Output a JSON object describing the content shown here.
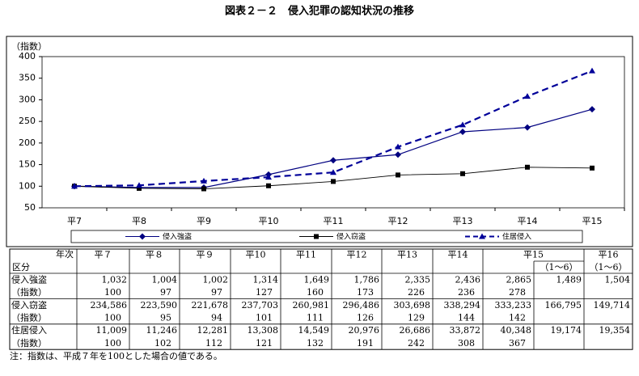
{
  "chart_data": {
    "type": "line",
    "title": "図表２－２　侵入犯罪の認知状況の推移",
    "y_label": "（指数）",
    "categories": [
      "平7",
      "平8",
      "平9",
      "平10",
      "平11",
      "平12",
      "平13",
      "平14",
      "平15"
    ],
    "series": [
      {
        "name": "侵入強盗",
        "color": "#000080",
        "marker": "diamond",
        "dash": false,
        "values": [
          100,
          97,
          97,
          127,
          160,
          173,
          226,
          236,
          278
        ]
      },
      {
        "name": "侵入窃盗",
        "color": "#000000",
        "marker": "square",
        "dash": false,
        "values": [
          100,
          95,
          94,
          101,
          111,
          126,
          129,
          144,
          142
        ]
      },
      {
        "name": "住居侵入",
        "color": "#000099",
        "marker": "triangle",
        "dash": true,
        "values": [
          100,
          102,
          112,
          121,
          132,
          191,
          242,
          308,
          367
        ]
      }
    ],
    "ylim": [
      50,
      400
    ],
    "yticks": [
      50,
      100,
      150,
      200,
      250,
      300,
      350,
      400
    ],
    "grid": false
  },
  "table": {
    "corner_top": "年次",
    "corner_bottom": "区分",
    "years": [
      "平７",
      "平８",
      "平９",
      "平10",
      "平11",
      "平12",
      "平13",
      "平14",
      "平15",
      "平16"
    ],
    "period_label": "（1～6）",
    "index_label": "（指数）",
    "groups": [
      {
        "label": "侵入強盗",
        "counts": [
          "1,032",
          "1,004",
          "1,002",
          "1,314",
          "1,649",
          "1,786",
          "2,335",
          "2,436",
          "2,865",
          "1,489",
          "1,504"
        ]
      },
      {
        "label": "侵入窃盗",
        "counts": [
          "234,586",
          "223,590",
          "221,678",
          "237,703",
          "260,981",
          "296,486",
          "303,698",
          "338,294",
          "333,233",
          "166,795",
          "149,714"
        ]
      },
      {
        "label": "住居侵入",
        "counts": [
          "11,009",
          "11,246",
          "12,281",
          "13,308",
          "14,549",
          "20,976",
          "26,686",
          "33,872",
          "40,348",
          "19,174",
          "19,354"
        ]
      }
    ]
  },
  "note": "注：指数は、平成７年を100とした場合の値である。"
}
